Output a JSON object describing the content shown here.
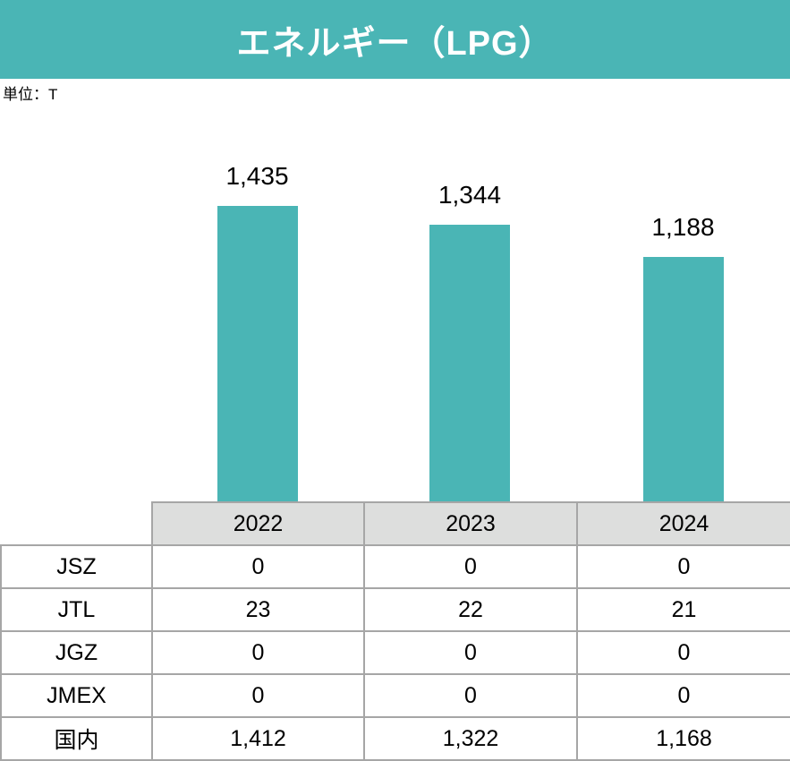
{
  "header": {
    "title": "エネルギー（LPG）",
    "bg_color": "#4AB5B5",
    "text_color": "#FFFFFF"
  },
  "unit_label": "単位：T",
  "chart_data": {
    "type": "bar",
    "title": "エネルギー（LPG）",
    "unit": "T",
    "categories": [
      "2022",
      "2023",
      "2024"
    ],
    "values": [
      1435,
      1344,
      1188
    ],
    "value_labels": [
      "1,435",
      "1,344",
      "1,188"
    ],
    "bar_color": "#4AB5B5",
    "xlabel": "",
    "ylabel": "",
    "ylim": [
      0,
      1600
    ],
    "grid": false,
    "legend": false,
    "data_labels_position": "above-bars"
  },
  "table": {
    "columns": [
      "2022",
      "2023",
      "2024"
    ],
    "header_bg": "#DDDEDD",
    "border_color": "#A6A6A6",
    "rows": [
      {
        "label": "JSZ",
        "values": [
          "0",
          "0",
          "0"
        ]
      },
      {
        "label": "JTL",
        "values": [
          "23",
          "22",
          "21"
        ]
      },
      {
        "label": "JGZ",
        "values": [
          "0",
          "0",
          "0"
        ]
      },
      {
        "label": "JMEX",
        "values": [
          "0",
          "0",
          "0"
        ]
      },
      {
        "label": "国内",
        "values": [
          "1,412",
          "1,322",
          "1,168"
        ]
      }
    ]
  }
}
